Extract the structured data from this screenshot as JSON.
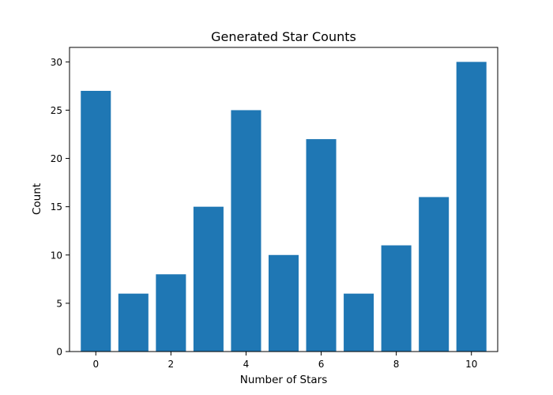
{
  "chart_data": {
    "type": "bar",
    "title": "Generated Star Counts",
    "xlabel": "Number of Stars",
    "ylabel": "Count",
    "categories": [
      0,
      1,
      2,
      3,
      4,
      5,
      6,
      7,
      8,
      9,
      10
    ],
    "values": [
      27,
      6,
      8,
      15,
      25,
      10,
      22,
      6,
      11,
      16,
      30
    ],
    "xlim": [
      -0.7,
      10.7
    ],
    "ylim": [
      0,
      31.5
    ],
    "xticks": [
      0,
      2,
      4,
      6,
      8,
      10
    ],
    "yticks": [
      0,
      5,
      10,
      15,
      20,
      25,
      30
    ],
    "bar_color": "#1f77b4",
    "grid": false,
    "legend": "none"
  }
}
